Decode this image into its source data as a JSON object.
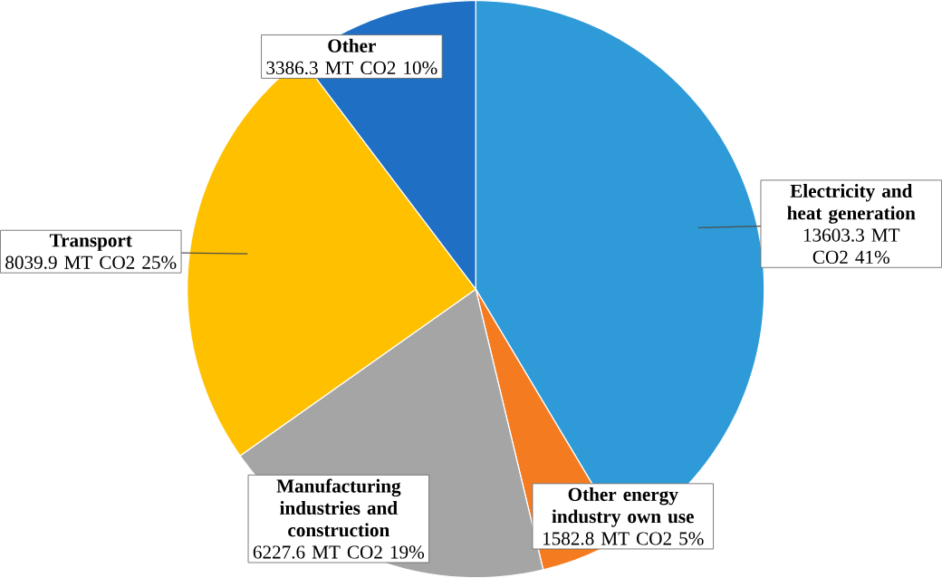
{
  "chart_data": {
    "type": "pie",
    "categories": [
      "Electricity and heat generation",
      "Other energy industry own use",
      "Manufacturing industries and construction",
      "Transport",
      "Other"
    ],
    "values": [
      13603.3,
      1582.8,
      6227.6,
      8039.9,
      3386.3
    ],
    "value_labels": [
      "13603.3 MT CO2 41%",
      "1582.8 MT CO2 5%",
      "6227.6 MT CO2 19%",
      "8039.9 MT CO2 25%",
      "3386.3 MT CO2 10%"
    ],
    "colors": [
      "#2e9bd8",
      "#f47b20",
      "#a5a5a5",
      "#ffc000",
      "#1f6fc5"
    ]
  }
}
